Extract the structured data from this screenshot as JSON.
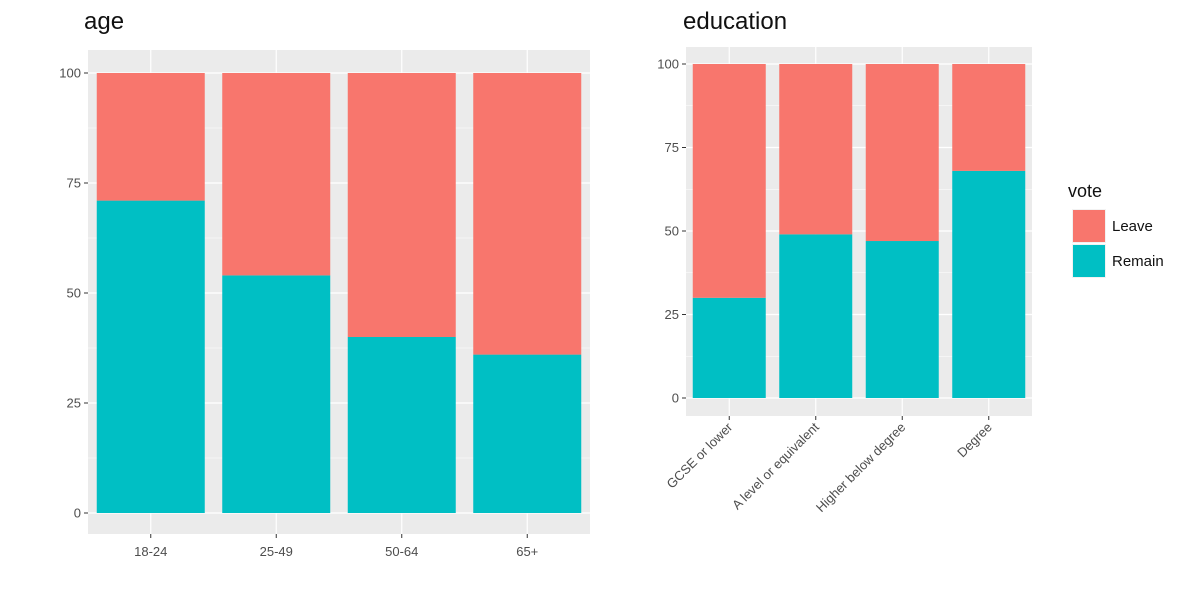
{
  "colors": {
    "leave": "#F8766D",
    "remain": "#00BFC4",
    "panel": "#EBEBEB",
    "grid": "#FFFFFF",
    "axis": "#333333"
  },
  "legend": {
    "title": "vote",
    "items": [
      {
        "label": "Leave",
        "color": "#F8766D"
      },
      {
        "label": "Remain",
        "color": "#00BFC4"
      }
    ]
  },
  "chart_data": [
    {
      "type": "bar",
      "stacked": true,
      "title": "age",
      "xlabel": "",
      "ylabel": "",
      "categories": [
        "18-24",
        "25-49",
        "50-64",
        "65+"
      ],
      "yticks": [
        0,
        25,
        50,
        75,
        100
      ],
      "ylim": [
        0,
        100
      ],
      "series": [
        {
          "name": "Remain",
          "values": [
            71,
            54,
            40,
            36
          ]
        },
        {
          "name": "Leave",
          "values": [
            29,
            46,
            60,
            64
          ]
        }
      ],
      "grid": true,
      "legend": "none"
    },
    {
      "type": "bar",
      "stacked": true,
      "title": "education",
      "xlabel": "",
      "ylabel": "",
      "categories": [
        "GCSE or lower",
        "A level or equivalent",
        "Higher below degree",
        "Degree"
      ],
      "yticks": [
        0,
        25,
        50,
        75,
        100
      ],
      "ylim": [
        0,
        100
      ],
      "series": [
        {
          "name": "Remain",
          "values": [
            30,
            49,
            47,
            68
          ]
        },
        {
          "name": "Leave",
          "values": [
            70,
            51,
            53,
            32
          ]
        }
      ],
      "grid": true,
      "legend": "right"
    }
  ]
}
